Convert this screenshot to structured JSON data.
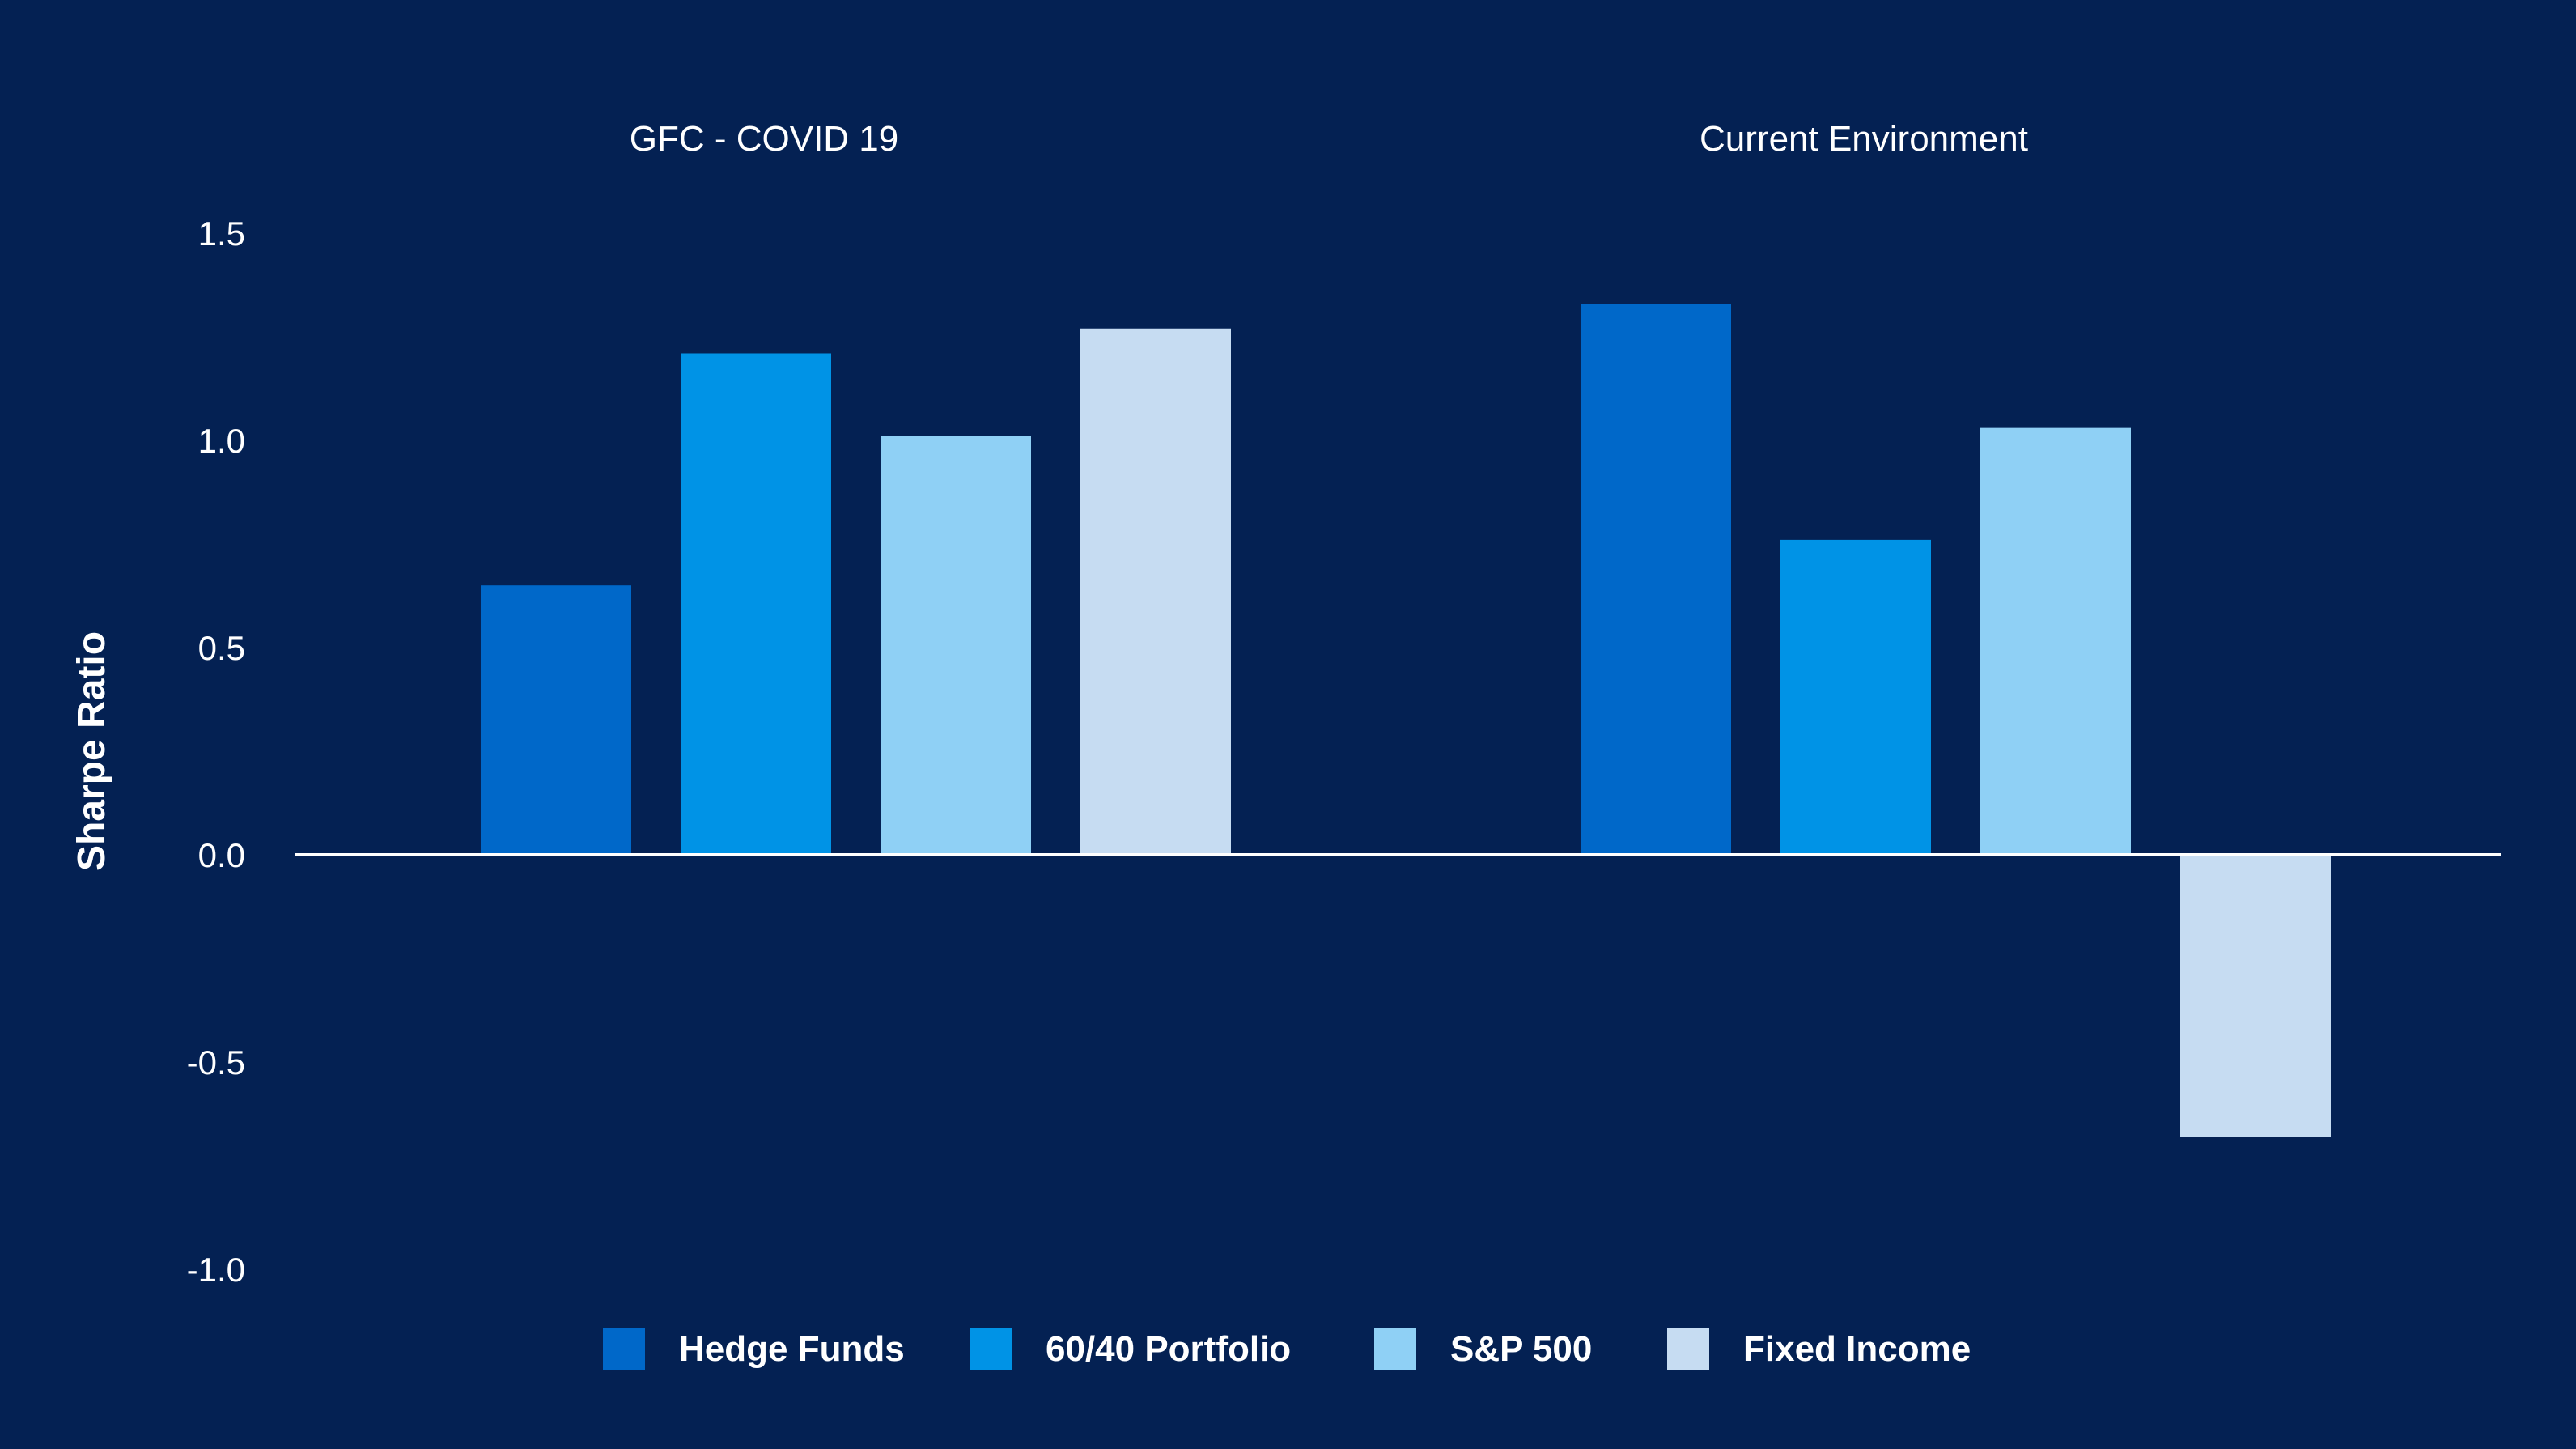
{
  "chart_data": {
    "type": "bar",
    "title": "",
    "ylabel": "Sharpe Ratio",
    "xlabel": "",
    "ylim": [
      -1.0,
      1.5
    ],
    "yticks": [
      1.5,
      1.0,
      0.5,
      0.0,
      -0.5,
      -1.0
    ],
    "ytick_labels": [
      "1.5",
      "1.0",
      "0.5",
      "0.0",
      "-0.5",
      "-1.0"
    ],
    "categories": [
      "GFC - COVID 19",
      "Current Environment"
    ],
    "series": [
      {
        "name": "Hedge Funds",
        "color": "#0068c9",
        "values": [
          0.65,
          1.33
        ]
      },
      {
        "name": "60/40 Portfolio",
        "color": "#0093e6",
        "values": [
          1.21,
          0.76
        ]
      },
      {
        "name": "S&P 500",
        "color": "#8fd0f5",
        "values": [
          1.01,
          1.03
        ]
      },
      {
        "name": "Fixed Income",
        "color": "#c6dcf2",
        "values": [
          1.27,
          -0.68
        ]
      }
    ],
    "legend_position": "bottom",
    "grid": false,
    "zero_line_color": "#ffffff"
  }
}
